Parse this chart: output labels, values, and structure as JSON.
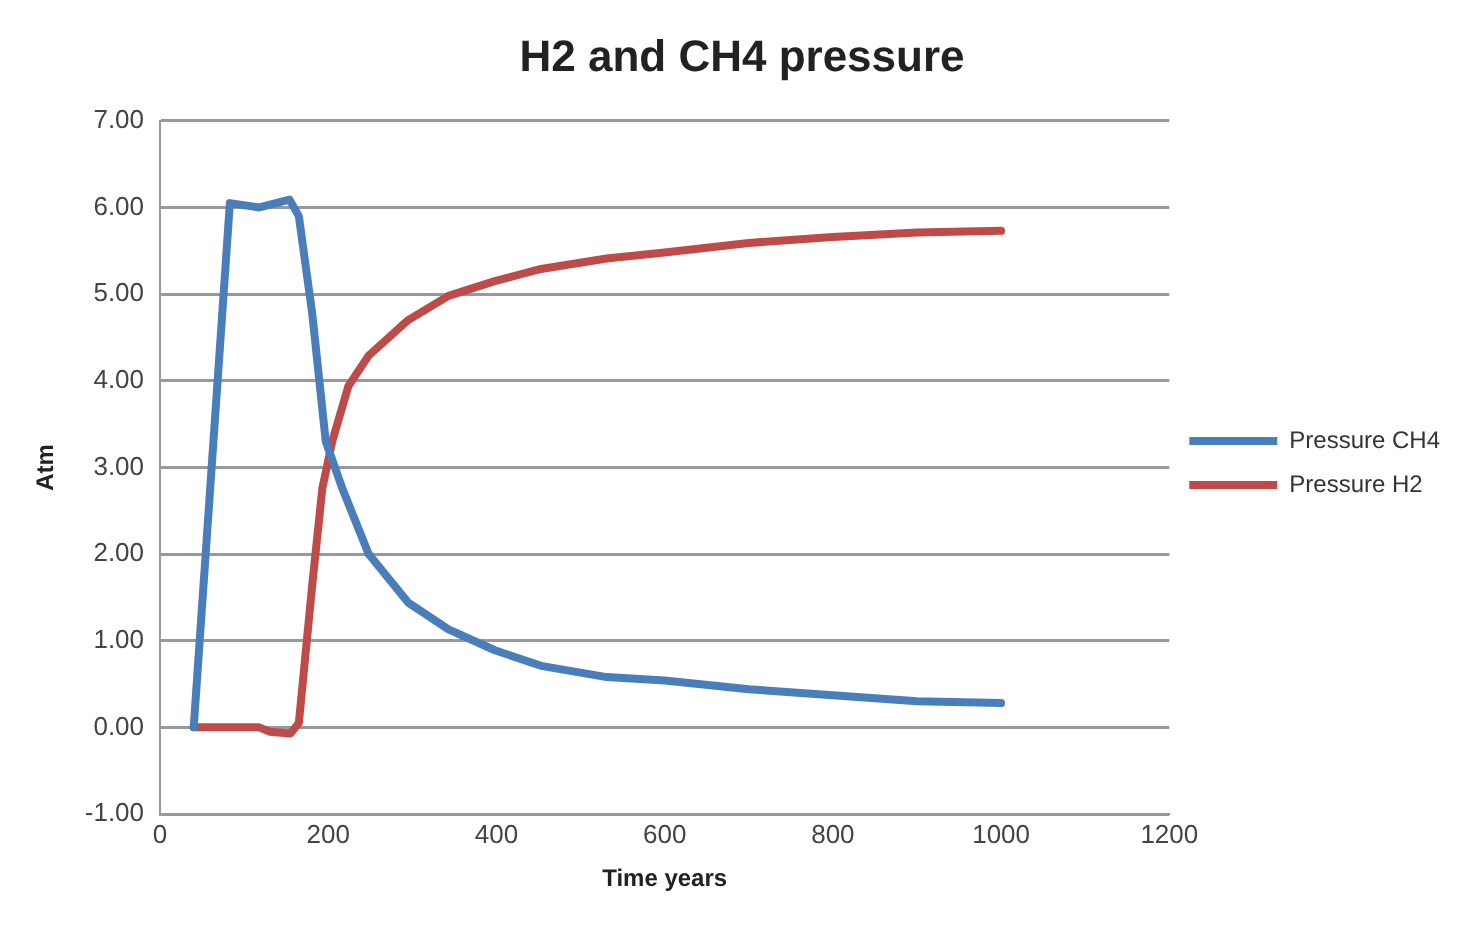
{
  "chart_data": {
    "type": "line",
    "title": "H2 and CH4 pressure",
    "xlabel": "Time years",
    "ylabel": "Atm",
    "xlim": [
      0,
      1200
    ],
    "xticks": [
      0,
      200,
      400,
      600,
      800,
      1000,
      1200
    ],
    "ylim": [
      -1,
      7
    ],
    "yticks": [
      {
        "value": -1,
        "label": "-1.00"
      },
      {
        "value": 0,
        "label": "0.00"
      },
      {
        "value": 1,
        "label": "1.00"
      },
      {
        "value": 2,
        "label": "2.00"
      },
      {
        "value": 3,
        "label": "3.00"
      },
      {
        "value": 4,
        "label": "4.00"
      },
      {
        "value": 5,
        "label": "5.00"
      },
      {
        "value": 6,
        "label": "6.00"
      },
      {
        "value": 7,
        "label": "7.00"
      }
    ],
    "grid": "y",
    "legend": "right",
    "marker": "none",
    "line_style": "solid",
    "series": [
      {
        "name": "Pressure CH4",
        "color": "#4a7ebb",
        "x": [
          40,
          83,
          118,
          154,
          165,
          181,
          197,
          217,
          248,
          295,
          343,
          398,
          453,
          531,
          600,
          700,
          800,
          900,
          1000
        ],
        "values": [
          0,
          6.05,
          6.0,
          6.09,
          5.9,
          4.77,
          3.3,
          2.75,
          2.0,
          1.44,
          1.13,
          0.89,
          0.71,
          0.58,
          0.54,
          0.44,
          0.37,
          0.3,
          0.28
        ]
      },
      {
        "name": "Pressure H2",
        "color": "#be4b48",
        "x": [
          40,
          118,
          130,
          155,
          165,
          181,
          193,
          205,
          224,
          248,
          295,
          343,
          398,
          453,
          531,
          600,
          700,
          800,
          900,
          1000
        ],
        "values": [
          0,
          0,
          -0.05,
          -0.07,
          0.05,
          1.65,
          2.76,
          3.31,
          3.94,
          4.29,
          4.7,
          4.98,
          5.15,
          5.29,
          5.41,
          5.48,
          5.59,
          5.66,
          5.71,
          5.73
        ]
      }
    ]
  }
}
